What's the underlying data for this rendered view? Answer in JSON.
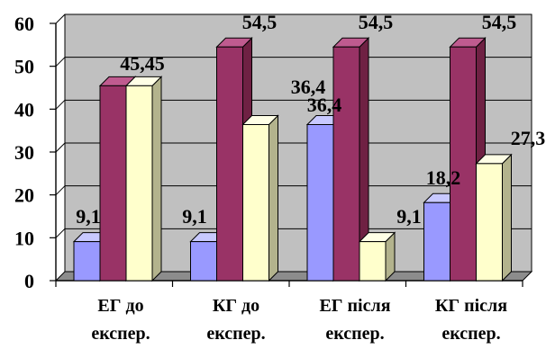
{
  "chart_data": {
    "type": "bar",
    "title": "",
    "xlabel": "",
    "ylabel": "",
    "ylim": [
      0,
      60
    ],
    "yticks": [
      "0",
      "10",
      "20",
      "30",
      "40",
      "50",
      "60"
    ],
    "categories": [
      [
        "ЕГ до",
        "експер."
      ],
      [
        "КГ до",
        "експер."
      ],
      [
        "ЕГ після",
        "експер."
      ],
      [
        "КГ після",
        "експер."
      ]
    ],
    "series": [
      {
        "values": [
          9.1,
          9.1,
          36.4,
          18.2
        ],
        "labels": [
          "9,1",
          "9,1",
          "36,4",
          "18,2"
        ]
      },
      {
        "values": [
          45.45,
          54.5,
          54.5,
          54.5
        ],
        "labels": [
          "45,45",
          "54,5",
          "54,5",
          "54,5"
        ]
      },
      {
        "values": [
          45.45,
          36.4,
          9.1,
          27.3
        ],
        "labels": [
          "45,45",
          "36,4",
          "9,1",
          "27,3"
        ]
      }
    ],
    "colors": {
      "wall": "#c0c0c0",
      "floor": "#8c8c8c",
      "series_front": [
        "#9999ff",
        "#993366",
        "#ffffcc"
      ],
      "series_side": [
        "#5f61b1",
        "#6f2143",
        "#b3b38d"
      ],
      "series_top": [
        "#c8c9ff",
        "#bf5b8f",
        "#ffffe6"
      ]
    },
    "grid": true,
    "legend": "none"
  }
}
